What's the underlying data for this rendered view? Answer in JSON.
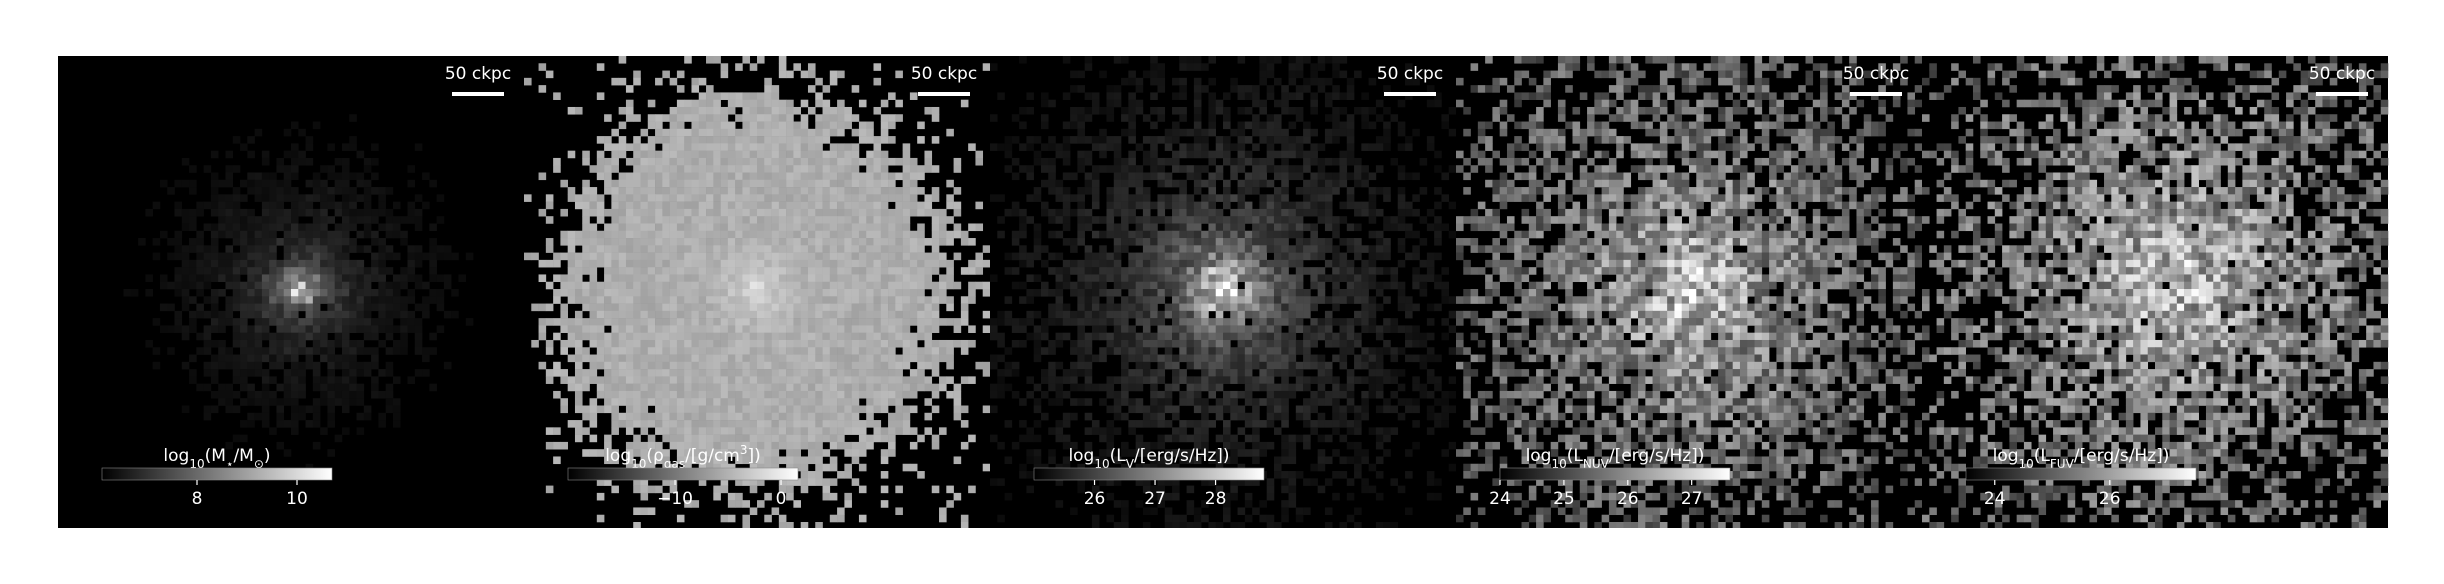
{
  "panels": [
    {
      "scale_label": "50 ckpc",
      "colorbar": {
        "label": [
          {
            "text": "log"
          },
          {
            "text": "10",
            "sub": true
          },
          {
            "text": "(M"
          },
          {
            "text": "⋆",
            "sub": true
          },
          {
            "text": "/M"
          },
          {
            "text": "⊙",
            "sub": true
          },
          {
            "text": ")"
          }
        ],
        "lim": [
          6.1,
          10.7
        ],
        "ticks": [
          8,
          10
        ]
      }
    },
    {
      "scale_label": "50 ckpc",
      "colorbar": {
        "label": [
          {
            "text": "log"
          },
          {
            "text": "10",
            "sub": true
          },
          {
            "text": "(ρ"
          },
          {
            "text": "gas",
            "sub": true
          },
          {
            "text": "/[g/cm"
          },
          {
            "text": "3",
            "sup": true
          },
          {
            "text": "])"
          }
        ],
        "lim": [
          -20.1,
          1.6
        ],
        "ticks": [
          {
            "value": -10,
            "label": "−10"
          },
          0
        ]
      }
    },
    {
      "scale_label": "50 ckpc",
      "colorbar": {
        "label": [
          {
            "text": "log"
          },
          {
            "text": "10",
            "sub": true
          },
          {
            "text": "(L"
          },
          {
            "text": "V",
            "sub": true
          },
          {
            "text": "/[erg/s/Hz])"
          }
        ],
        "lim": [
          25.0,
          28.8
        ],
        "ticks": [
          26,
          27,
          28
        ]
      }
    },
    {
      "scale_label": "50 ckpc",
      "colorbar": {
        "label": [
          {
            "text": "log"
          },
          {
            "text": "10",
            "sub": true
          },
          {
            "text": "(L"
          },
          {
            "text": "NUV",
            "sub": true
          },
          {
            "text": "/[erg/s/Hz])"
          }
        ],
        "lim": [
          24.0,
          27.6
        ],
        "ticks": [
          24,
          25,
          26,
          27
        ]
      }
    },
    {
      "scale_label": "50 ckpc",
      "colorbar": {
        "label": [
          {
            "text": "log"
          },
          {
            "text": "10",
            "sub": true
          },
          {
            "text": "(L"
          },
          {
            "text": "FUV",
            "sub": true
          },
          {
            "text": "/[erg/s/Hz])"
          }
        ],
        "lim": [
          23.5,
          27.5
        ],
        "ticks": [
          24,
          26
        ]
      }
    }
  ]
}
